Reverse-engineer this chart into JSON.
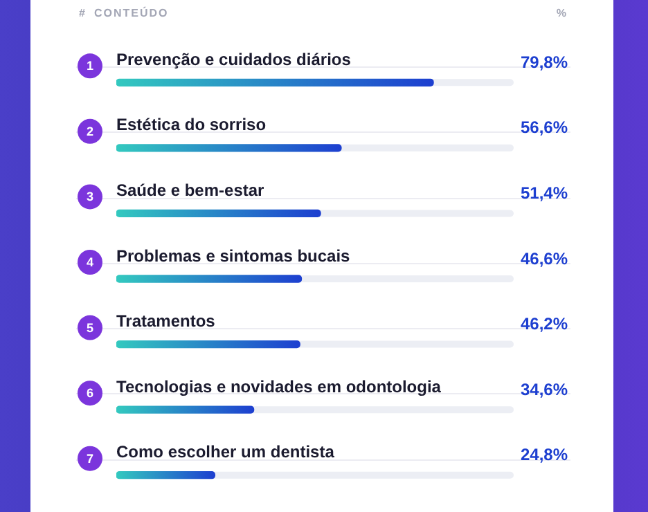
{
  "chart_data": {
    "type": "bar",
    "orientation": "horizontal",
    "categories": [
      "Prevenção e cuidados diários",
      "Estética do sorriso",
      "Saúde e bem-estar",
      "Problemas e sintomas bucais",
      "Tratamentos",
      "Tecnologias e novidades em odontologia",
      "Como escolher um dentista"
    ],
    "series": [
      {
        "color": "#1d3fd0",
        "values": [
          79.8,
          56.6,
          51.4,
          46.6,
          46.2,
          34.6,
          24.8
        ],
        "value_labels": [
          "79,8%",
          "56,6%",
          "51,4%",
          "46,6%",
          "46,2%",
          "34,6%",
          "24,8%"
        ]
      }
    ],
    "xlim": [
      0,
      100
    ],
    "tick_labels": "y",
    "legend": false,
    "annotations": [
      "#",
      "CONTEÚDO",
      "%",
      "1",
      "2",
      "3",
      "4",
      "5",
      "6",
      "7"
    ]
  }
}
